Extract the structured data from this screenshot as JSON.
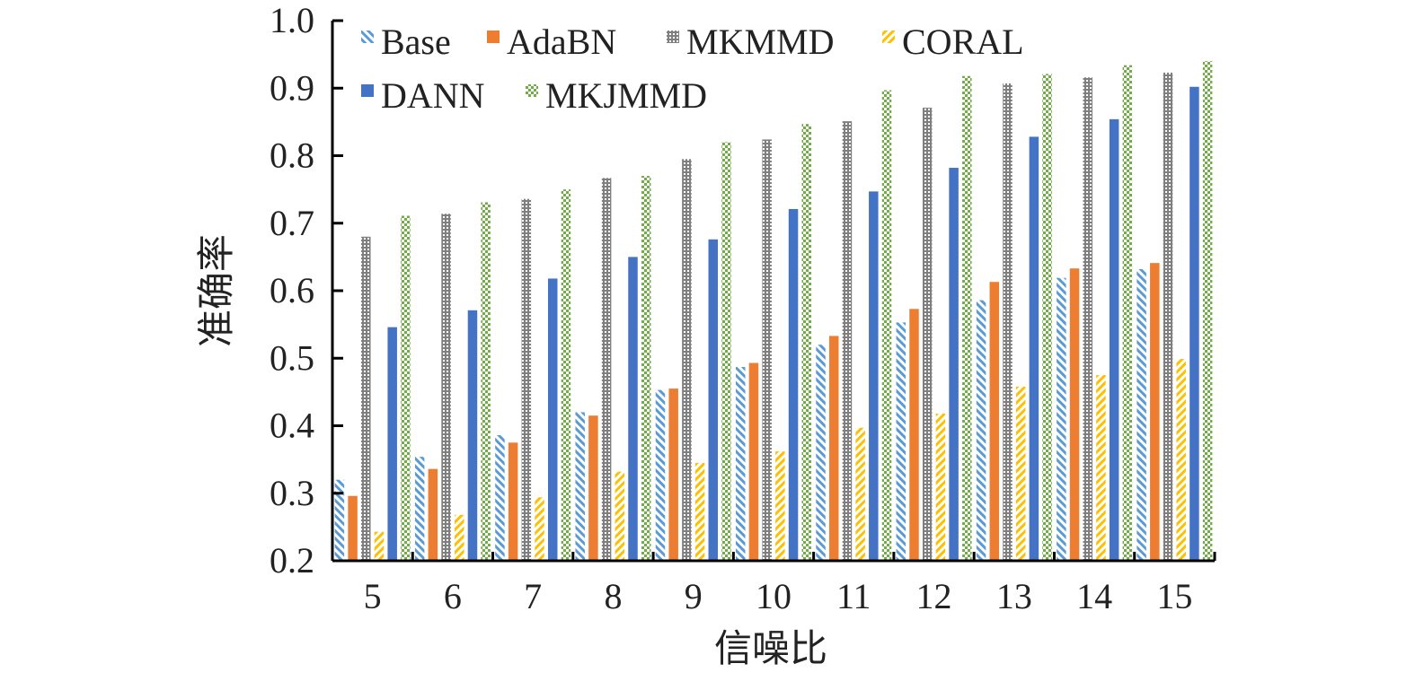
{
  "chart_data": {
    "type": "bar",
    "title": "",
    "xlabel": "信噪比",
    "ylabel": "准确率",
    "ylim": [
      0.2,
      1.0
    ],
    "yticks": [
      "0.2",
      "0.3",
      "0.4",
      "0.5",
      "0.6",
      "0.7",
      "0.8",
      "0.9",
      "1.0"
    ],
    "categories": [
      "5",
      "6",
      "7",
      "8",
      "9",
      "10",
      "11",
      "12",
      "13",
      "14",
      "15"
    ],
    "series": [
      {
        "name": "Base",
        "pattern": "diag-left",
        "color": "#5b9bd5",
        "values": [
          0.32,
          0.354,
          0.386,
          0.42,
          0.453,
          0.487,
          0.52,
          0.553,
          0.586,
          0.619,
          0.632
        ]
      },
      {
        "name": "AdaBN",
        "pattern": "solid",
        "color": "#ed7d31",
        "values": [
          0.296,
          0.336,
          0.375,
          0.415,
          0.455,
          0.493,
          0.533,
          0.573,
          0.613,
          0.633,
          0.641
        ]
      },
      {
        "name": "MKMMD",
        "pattern": "dots-grid",
        "color": "#7f7f7f",
        "values": [
          0.68,
          0.714,
          0.736,
          0.767,
          0.795,
          0.824,
          0.851,
          0.871,
          0.907,
          0.916,
          0.923
        ]
      },
      {
        "name": "CORAL",
        "pattern": "diag-right",
        "color": "#ffc000",
        "values": [
          0.243,
          0.268,
          0.294,
          0.332,
          0.345,
          0.362,
          0.397,
          0.418,
          0.458,
          0.475,
          0.499
        ]
      },
      {
        "name": "DANN",
        "pattern": "solid",
        "color": "#4472c4",
        "values": [
          0.546,
          0.571,
          0.618,
          0.65,
          0.676,
          0.721,
          0.747,
          0.782,
          0.828,
          0.854,
          0.902
        ]
      },
      {
        "name": "MKJMMD",
        "pattern": "checker",
        "color": "#70ad47",
        "values": [
          0.711,
          0.731,
          0.75,
          0.77,
          0.82,
          0.847,
          0.897,
          0.918,
          0.921,
          0.934,
          0.94
        ]
      }
    ],
    "legend": "top-left, inside plot, two rows",
    "grid": false
  }
}
